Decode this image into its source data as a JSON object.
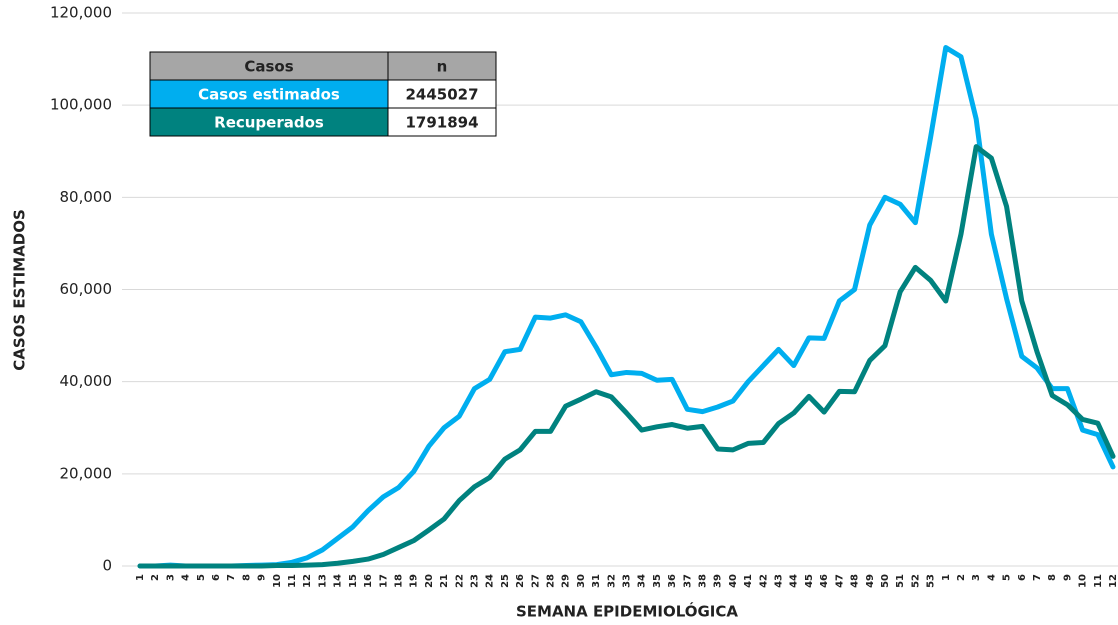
{
  "chart_data": {
    "type": "line",
    "x_label": "SEMANA EPIDEMIOLÓGICA",
    "y_label": "CASOS ESTIMADOS",
    "categories": [
      "1",
      "2",
      "3",
      "4",
      "5",
      "6",
      "7",
      "8",
      "9",
      "10",
      "11",
      "12",
      "13",
      "14",
      "15",
      "16",
      "17",
      "18",
      "19",
      "20",
      "21",
      "22",
      "23",
      "24",
      "25",
      "26",
      "27",
      "28",
      "29",
      "30",
      "31",
      "32",
      "33",
      "34",
      "35",
      "36",
      "37",
      "38",
      "39",
      "40",
      "41",
      "42",
      "43",
      "44",
      "45",
      "46",
      "47",
      "48",
      "49",
      "50",
      "51",
      "52",
      "53",
      "1",
      "2",
      "3",
      "4",
      "5",
      "6",
      "7",
      "8",
      "9",
      "10",
      "11",
      "12"
    ],
    "ylim": [
      0,
      120000
    ],
    "yticks": [
      0,
      {
        "value": 20000,
        "label": "20,000"
      },
      {
        "value": 40000,
        "label": "40,000"
      },
      {
        "value": 60000,
        "label": "60,000"
      },
      {
        "value": 80000,
        "label": "80,000"
      },
      {
        "value": 100000,
        "label": "100,000"
      },
      {
        "value": 120000,
        "label": "120,000"
      }
    ],
    "grid": true,
    "legend_header": [
      "Casos",
      "n"
    ],
    "series": [
      {
        "name": "Casos estimados",
        "color": "#00aeef",
        "total": 2445027,
        "values": [
          0,
          0,
          200,
          0,
          0,
          0,
          0,
          100,
          200,
          300,
          800,
          1800,
          3500,
          6000,
          8500,
          12000,
          15000,
          17000,
          20500,
          26000,
          30000,
          32500,
          38500,
          40500,
          46500,
          47000,
          54000,
          53800,
          54500,
          53000,
          47500,
          41500,
          42000,
          41800,
          40300,
          40500,
          34000,
          33500,
          34500,
          35800,
          40000,
          43500,
          47000,
          43500,
          49500,
          49400,
          57500,
          60000,
          74000,
          80000,
          78500,
          74500,
          93000,
          112500,
          110500,
          97000,
          72000,
          58000,
          45500,
          43000,
          38500,
          38500,
          29500,
          28500,
          21500
        ]
      },
      {
        "name": "Recuperados",
        "color": "#00827f",
        "total": 1791894,
        "values": [
          0,
          0,
          0,
          0,
          0,
          0,
          0,
          0,
          0,
          100,
          100,
          200,
          300,
          600,
          1000,
          1500,
          2500,
          4000,
          5500,
          7800,
          10200,
          14200,
          17200,
          19200,
          23200,
          25200,
          29200,
          29200,
          34700,
          36200,
          37800,
          36700,
          33200,
          29500,
          30200,
          30700,
          29900,
          30300,
          25400,
          25200,
          26600,
          26800,
          30900,
          33200,
          36800,
          33400,
          37900,
          37800,
          44600,
          47800,
          59500,
          64800,
          62000,
          57500,
          72000,
          91000,
          88500,
          78000,
          57500,
          46500,
          37000,
          35000,
          31800,
          31000,
          23800
        ]
      }
    ]
  }
}
